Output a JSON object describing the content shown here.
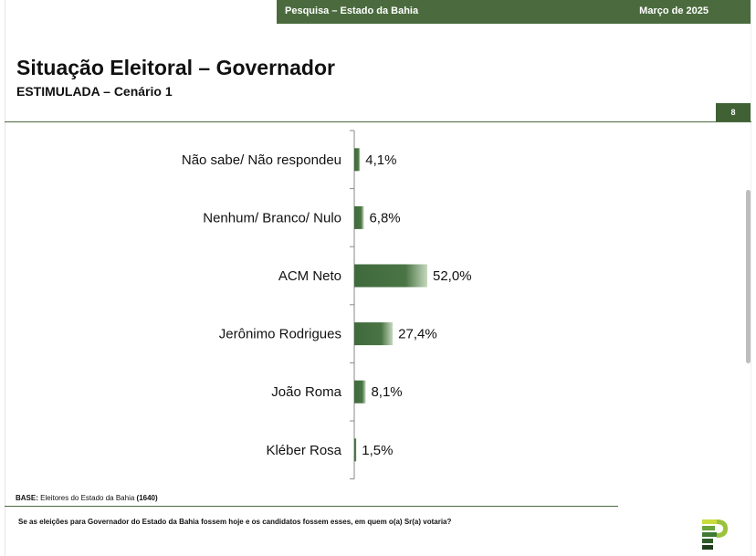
{
  "header": {
    "survey_label": "Pesquisa – Estado da Bahia",
    "date_label": "Março de 2025"
  },
  "title": "Situação Eleitoral – Governador",
  "subtitle": "ESTIMULADA – Cenário 1",
  "page_number": "8",
  "footer": {
    "base_prefix": "BASE:",
    "base_text": "Eleitores do Estado da Bahia",
    "base_count": "(1640)",
    "question": "Se as eleições para Governador do Estado da Bahia fossem hoje e os candidatos fossem esses, em quem o(a) Sr(a) votaria?"
  },
  "colors": {
    "brand_green": "#4b6b3e",
    "bar_dark": "#3f6a3c",
    "bar_light": "#c6d9bf"
  },
  "chart_data": {
    "type": "bar",
    "orientation": "horizontal",
    "categories": [
      "Não sabe/ Não respondeu",
      "Nenhum/ Branco/ Nulo",
      "ACM Neto",
      "Jerônimo Rodrigues",
      "João Roma",
      "Kléber Rosa"
    ],
    "values": [
      4.1,
      6.8,
      52.0,
      27.4,
      8.1,
      1.5
    ],
    "value_labels": [
      "4,1%",
      "6,8%",
      "52,0%",
      "27,4%",
      "8,1%",
      "1,5%"
    ],
    "xlim": [
      0,
      52.0
    ],
    "grid": false,
    "legend": "none"
  }
}
